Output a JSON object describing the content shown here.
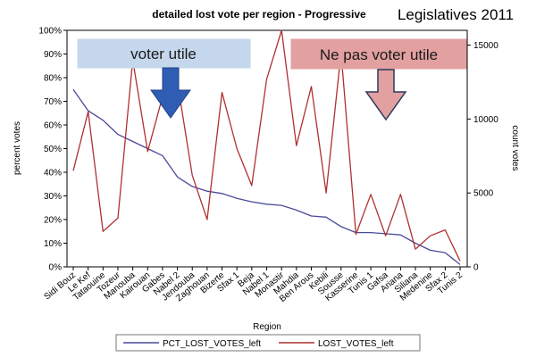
{
  "header": {
    "badge": "Legislatives 2011"
  },
  "chart_data": {
    "type": "line",
    "title": "detailed lost vote per region - Progressive",
    "xlabel": "Region",
    "ylabel_left": "percent votes",
    "ylabel_right": "count votes",
    "categories": [
      "Sidi Bouz",
      "Le Kef",
      "Tataouine",
      "Tozeur",
      "Manouba",
      "Kairouan",
      "Gabes",
      "Nabel 2",
      "Jendouba",
      "Zaghouan",
      "Bizerte",
      "Sfax 1",
      "Beja",
      "Nabel 1",
      "Monastir",
      "Mahdia",
      "Ben Arous",
      "Kebili",
      "Sousse",
      "Kasserine",
      "Tunis 1",
      "Gafsa",
      "Ariana",
      "Siliana",
      "Medenine",
      "Sfax 2",
      "Tunis 2"
    ],
    "y_left_ticks": [
      "0%",
      "10%",
      "20%",
      "30%",
      "40%",
      "50%",
      "60%",
      "70%",
      "80%",
      "90%",
      "100%"
    ],
    "y_left_range": [
      0,
      100
    ],
    "y_right_ticks": [
      "0",
      "5000",
      "10000",
      "15000"
    ],
    "y_right_range": [
      0,
      16000
    ],
    "series": [
      {
        "name": "PCT_LOST_VOTES_left",
        "axis": "left",
        "color": "#4a4a9a",
        "values": [
          75,
          66,
          62,
          56,
          53,
          50,
          47,
          38,
          34,
          32,
          31,
          29,
          27.5,
          26.5,
          26,
          24,
          21.5,
          21,
          17,
          14.5,
          14.5,
          14,
          13.5,
          10,
          7,
          6,
          1
        ]
      },
      {
        "name": "LOST_VOTES_left",
        "axis": "right",
        "color": "#b03030",
        "values": [
          6500,
          10500,
          2400,
          3300,
          14000,
          7800,
          11500,
          12500,
          6200,
          3200,
          11800,
          8000,
          5500,
          12700,
          16000,
          8200,
          12200,
          5000,
          14500,
          2200,
          4900,
          2100,
          4900,
          1200,
          2100,
          2500,
          400
        ]
      }
    ],
    "annotations": [
      {
        "text": "voter utile",
        "fill": "#c5d7ec",
        "arrow_color": "#2f5db3"
      },
      {
        "text": "Ne pas voter utile",
        "fill": "#e3a0a0",
        "arrow_color": "#e3a0a0"
      }
    ],
    "legend": [
      "PCT_LOST_VOTES_left",
      "LOST_VOTES_left"
    ]
  }
}
